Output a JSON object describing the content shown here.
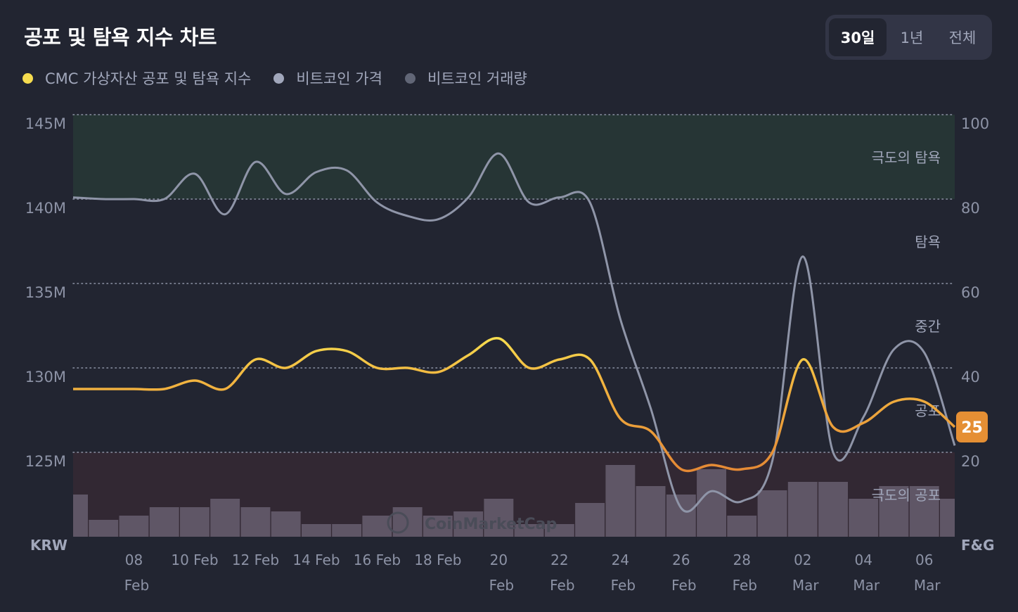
{
  "header": {
    "title": "공포 및 탐욕 지수 차트",
    "range_tabs": [
      {
        "label": "30일",
        "active": true
      },
      {
        "label": "1년",
        "active": false
      },
      {
        "label": "전체",
        "active": false
      }
    ]
  },
  "legend": [
    {
      "label": "CMC 가상자산 공포 및 탐욕 지수",
      "color": "#f6dc4f"
    },
    {
      "label": "비트코인 가격",
      "color": "#a1a7bb"
    },
    {
      "label": "비트코인 거래량",
      "color": "#616676"
    }
  ],
  "chart_data": {
    "type": "line",
    "left_axis": {
      "label": "KRW",
      "ticks": [
        "145M",
        "140M",
        "135M",
        "130M",
        "125M"
      ],
      "range": [
        120,
        145
      ],
      "unit": "M"
    },
    "right_axis": {
      "label": "F&G",
      "ticks": [
        "100",
        "80",
        "60",
        "40",
        "20"
      ],
      "range": [
        0,
        100
      ]
    },
    "x_ticks": [
      {
        "day": "08",
        "month": "Feb"
      },
      {
        "day": "10 Feb",
        "month": ""
      },
      {
        "day": "12 Feb",
        "month": ""
      },
      {
        "day": "14 Feb",
        "month": ""
      },
      {
        "day": "16 Feb",
        "month": ""
      },
      {
        "day": "18 Feb",
        "month": ""
      },
      {
        "day": "20",
        "month": "Feb"
      },
      {
        "day": "22",
        "month": "Feb"
      },
      {
        "day": "24",
        "month": "Feb"
      },
      {
        "day": "26",
        "month": "Feb"
      },
      {
        "day": "28",
        "month": "Feb"
      },
      {
        "day": "02",
        "month": "Mar"
      },
      {
        "day": "04",
        "month": "Mar"
      },
      {
        "day": "06",
        "month": "Mar"
      }
    ],
    "zones": [
      {
        "label": "극도의 탐욕",
        "from": 80,
        "to": 100,
        "color": "#263535"
      },
      {
        "label": "탐욕",
        "from": 60,
        "to": 80
      },
      {
        "label": "중간",
        "from": 40,
        "to": 60
      },
      {
        "label": "공포",
        "from": 20,
        "to": 40
      },
      {
        "label": "극도의 공포",
        "from": 0,
        "to": 20,
        "color": "#322833"
      }
    ],
    "x": [
      "02-06",
      "02-07",
      "02-08",
      "02-09",
      "02-10",
      "02-11",
      "02-12",
      "02-13",
      "02-14",
      "02-15",
      "02-16",
      "02-17",
      "02-18",
      "02-19",
      "02-20",
      "02-21",
      "02-22",
      "02-23",
      "02-24",
      "02-25",
      "02-26",
      "02-27",
      "02-28",
      "03-01",
      "03-02",
      "03-03",
      "03-04",
      "03-05",
      "03-06",
      "03-07"
    ],
    "series": [
      {
        "name": "CMC 가상자산 공포 및 탐욕 지수",
        "axis": "right",
        "values": [
          35,
          35,
          35,
          35,
          37,
          35,
          42,
          40,
          44,
          44,
          40,
          40,
          39,
          43,
          47,
          40,
          42,
          42,
          28,
          25,
          16,
          17,
          16,
          20,
          42,
          26,
          27,
          32,
          32,
          26
        ]
      },
      {
        "name": "비트코인 가격",
        "axis": "left",
        "values": [
          140.1,
          140.0,
          140.0,
          140.0,
          141.5,
          139.1,
          142.2,
          140.3,
          141.6,
          141.7,
          139.8,
          139.0,
          138.8,
          140.1,
          142.7,
          139.8,
          140.1,
          139.8,
          132.9,
          127.6,
          121.7,
          122.7,
          122.1,
          124.5,
          136.6,
          125.0,
          127.1,
          131.1,
          130.9,
          125.4
        ]
      },
      {
        "name": "비트코인 거래량",
        "axis": "right",
        "values": [
          10,
          4,
          5,
          7,
          7,
          9,
          7,
          6,
          3,
          3,
          5,
          7,
          5,
          6,
          9,
          3,
          3,
          8,
          17,
          12,
          10,
          16,
          5,
          11,
          13,
          13,
          9,
          12,
          12,
          9
        ]
      }
    ],
    "current_value": "25",
    "watermark": "CoinMarketCap"
  }
}
